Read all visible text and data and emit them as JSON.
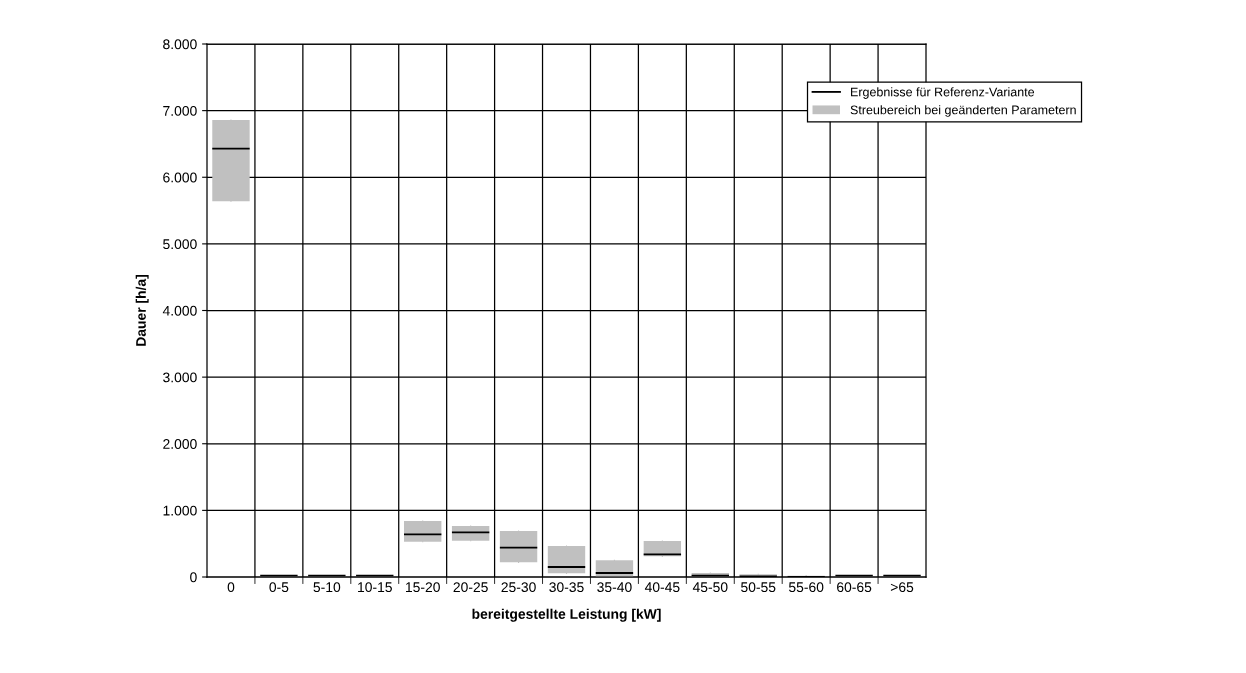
{
  "chart_data": {
    "type": "box",
    "xlabel": "bereitgestellte Leistung [kW]",
    "ylabel": "Dauer [h/a]",
    "categories": [
      "0",
      "0-5",
      "5-10",
      "10-15",
      "15-20",
      "20-25",
      "25-30",
      "30-35",
      "35-40",
      "40-45",
      "45-50",
      "50-55",
      "55-60",
      "60-65",
      ">65"
    ],
    "annotations": [
      "Ergebnisse für Referenz-Variante"
    ],
    "series": [
      {
        "name": "Streubereich bei geänderten Parametern",
        "color": "#c0c0c0",
        "boxes": [
          {
            "low": 5640,
            "q1": 5640,
            "median": 6430,
            "q3": 6860,
            "high": 6860
          },
          {
            "low": 0,
            "q1": 0,
            "median": 20,
            "q3": 20,
            "high": 20
          },
          {
            "low": 0,
            "q1": 0,
            "median": 20,
            "q3": 20,
            "high": 20
          },
          {
            "low": 0,
            "q1": 0,
            "median": 20,
            "q3": 20,
            "high": 20
          },
          {
            "low": 530,
            "q1": 530,
            "median": 640,
            "q3": 840,
            "high": 840
          },
          {
            "low": 545,
            "q1": 545,
            "median": 670,
            "q3": 765,
            "high": 765
          },
          {
            "low": 220,
            "q1": 220,
            "median": 440,
            "q3": 690,
            "high": 690
          },
          {
            "low": 55,
            "q1": 55,
            "median": 150,
            "q3": 465,
            "high": 465
          },
          {
            "low": 0,
            "q1": 0,
            "median": 60,
            "q3": 250,
            "high": 250
          },
          {
            "low": 310,
            "q1": 310,
            "median": 340,
            "q3": 540,
            "high": 540
          },
          {
            "low": 0,
            "q1": 0,
            "median": 20,
            "q3": 60,
            "high": 60
          },
          {
            "low": 0,
            "q1": 0,
            "median": 10,
            "q3": 40,
            "high": 40
          },
          {
            "low": 0,
            "q1": 0,
            "median": 0,
            "q3": 20,
            "high": 20
          },
          {
            "low": 0,
            "q1": 0,
            "median": 20,
            "q3": 20,
            "high": 20
          },
          {
            "low": 0,
            "q1": 0,
            "median": 20,
            "q3": 20,
            "high": 20
          }
        ]
      }
    ],
    "ylim": [
      0,
      8000
    ],
    "yticks": [
      0,
      {
        "value": 1000,
        "label": "1.000"
      },
      {
        "value": 2000,
        "label": "2.000"
      },
      {
        "value": 3000,
        "label": "3.000"
      },
      {
        "value": 4000,
        "label": "4.000"
      },
      {
        "value": 5000,
        "label": "5.000"
      },
      {
        "value": 6000,
        "label": "6.000"
      },
      {
        "value": 7000,
        "label": "7.000"
      },
      {
        "value": 8000,
        "label": "8.000"
      }
    ],
    "grid": true,
    "legend": "top right"
  }
}
